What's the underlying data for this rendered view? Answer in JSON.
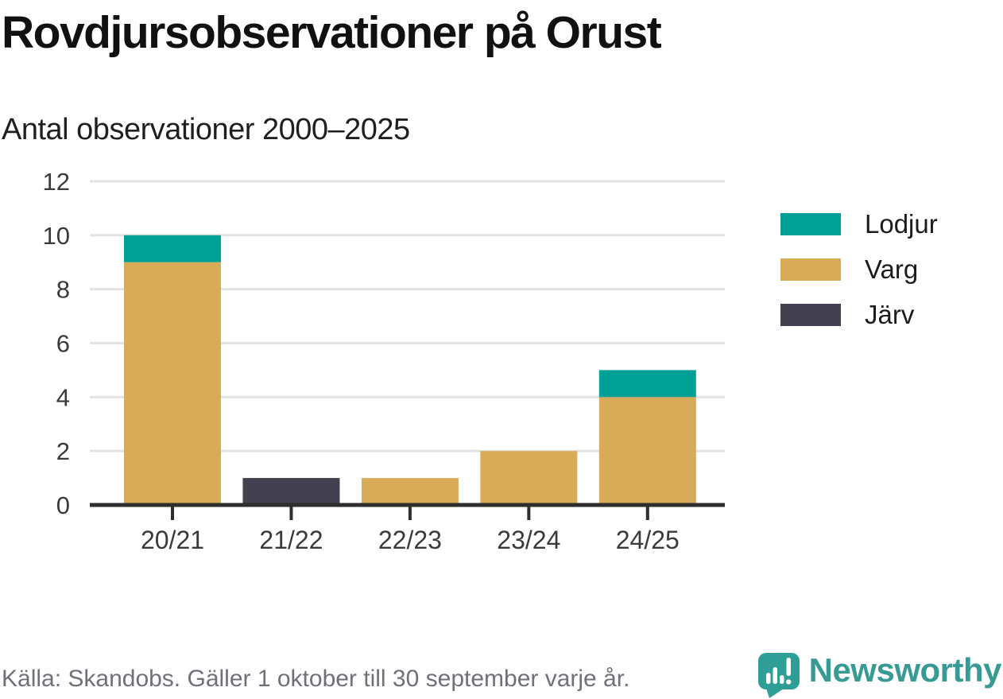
{
  "chart_data": {
    "type": "bar",
    "stacked": true,
    "title": "Rovdjursobservationer på Orust",
    "subtitle": "Antal observationer 2000–2025",
    "categories": [
      "20/21",
      "21/22",
      "22/23",
      "23/24",
      "24/25"
    ],
    "series": [
      {
        "name": "Lodjur",
        "color": "#00a096",
        "values": [
          1,
          0,
          0,
          0,
          1
        ]
      },
      {
        "name": "Varg",
        "color": "#d8ab58",
        "values": [
          9,
          0,
          1,
          2,
          4
        ]
      },
      {
        "name": "Järv",
        "color": "#434050",
        "values": [
          0,
          1,
          0,
          0,
          0
        ]
      }
    ],
    "stack_order_bottom_to_top": [
      "Varg",
      "Järv",
      "Lodjur"
    ],
    "xlabel": "",
    "ylabel": "",
    "ylim": [
      0,
      12
    ],
    "yticks": [
      0,
      2,
      4,
      6,
      8,
      10,
      12
    ],
    "grid": true,
    "legend_position": "right",
    "totals": [
      10,
      1,
      1,
      2,
      5
    ]
  },
  "footer": {
    "source": "Källa: Skandobs. Gäller 1 oktober till 30 september varje år.",
    "brand": "Newsworthy"
  },
  "colors": {
    "teal": "#00a096",
    "gold": "#d8ab58",
    "slate": "#434050",
    "grid_line": "#e3e3e3",
    "axis_line": "#2e2e2e",
    "axis_text": "#3a3a3a",
    "title_text": "#111111",
    "footer_gray": "#70707a",
    "brand_teal": "#399a94",
    "icon_teal": "#2f9e97"
  }
}
